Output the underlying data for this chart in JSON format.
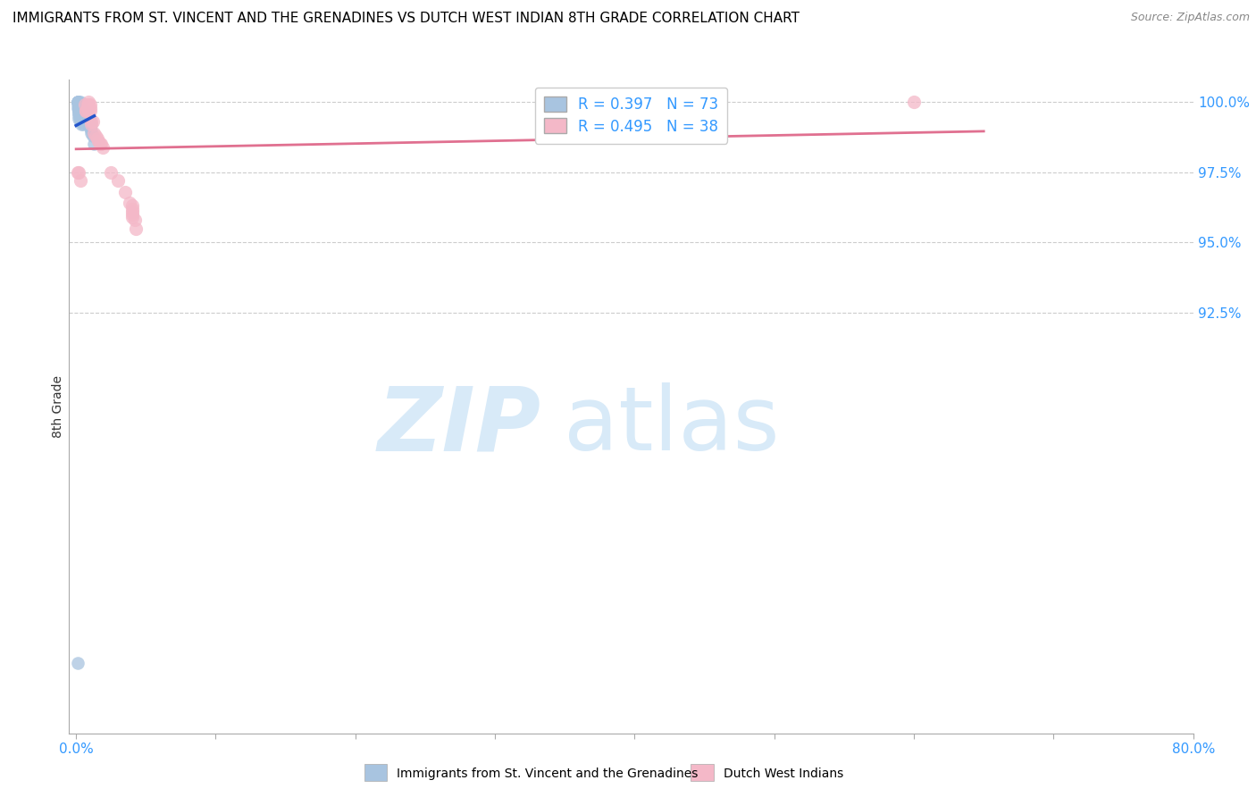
{
  "title": "IMMIGRANTS FROM ST. VINCENT AND THE GRENADINES VS DUTCH WEST INDIAN 8TH GRADE CORRELATION CHART",
  "source": "Source: ZipAtlas.com",
  "ylabel": "8th Grade",
  "ytick_labels": [
    "100.0%",
    "97.5%",
    "95.0%",
    "92.5%"
  ],
  "ytick_vals": [
    1.0,
    0.975,
    0.95,
    0.925
  ],
  "xlim": [
    -0.005,
    0.8
  ],
  "ylim": [
    0.775,
    1.008
  ],
  "blue_R": 0.397,
  "blue_N": 73,
  "pink_R": 0.495,
  "pink_N": 38,
  "blue_color": "#a8c4e0",
  "pink_color": "#f4b8c8",
  "blue_line_color": "#2255cc",
  "pink_line_color": "#e07090",
  "legend_label_blue": "Immigrants from St. Vincent and the Grenadines",
  "legend_label_pink": "Dutch West Indians",
  "blue_x": [
    0.001,
    0.001,
    0.001,
    0.001,
    0.001,
    0.001,
    0.002,
    0.002,
    0.002,
    0.002,
    0.002,
    0.002,
    0.002,
    0.002,
    0.002,
    0.002,
    0.002,
    0.002,
    0.002,
    0.002,
    0.003,
    0.003,
    0.003,
    0.003,
    0.003,
    0.003,
    0.003,
    0.003,
    0.003,
    0.003,
    0.003,
    0.003,
    0.003,
    0.004,
    0.004,
    0.004,
    0.004,
    0.004,
    0.004,
    0.004,
    0.004,
    0.004,
    0.005,
    0.005,
    0.005,
    0.005,
    0.005,
    0.005,
    0.005,
    0.006,
    0.006,
    0.006,
    0.006,
    0.006,
    0.007,
    0.007,
    0.007,
    0.007,
    0.008,
    0.008,
    0.008,
    0.008,
    0.009,
    0.009,
    0.009,
    0.01,
    0.01,
    0.01,
    0.011,
    0.011,
    0.012,
    0.013,
    0.001
  ],
  "blue_y": [
    1.0,
    1.0,
    1.0,
    1.0,
    0.999,
    0.998,
    1.0,
    1.0,
    0.999,
    0.999,
    0.999,
    0.998,
    0.998,
    0.998,
    0.997,
    0.997,
    0.996,
    0.996,
    0.995,
    0.994,
    1.0,
    0.999,
    0.999,
    0.998,
    0.998,
    0.997,
    0.997,
    0.996,
    0.996,
    0.995,
    0.995,
    0.994,
    0.993,
    0.999,
    0.998,
    0.998,
    0.997,
    0.996,
    0.995,
    0.994,
    0.993,
    0.992,
    0.998,
    0.997,
    0.996,
    0.995,
    0.994,
    0.993,
    0.992,
    0.997,
    0.996,
    0.995,
    0.994,
    0.993,
    0.996,
    0.995,
    0.994,
    0.993,
    0.995,
    0.994,
    0.993,
    0.992,
    0.994,
    0.993,
    0.992,
    0.993,
    0.992,
    0.991,
    0.99,
    0.989,
    0.988,
    0.985,
    0.8
  ],
  "pink_x": [
    0.001,
    0.002,
    0.003,
    0.006,
    0.007,
    0.007,
    0.008,
    0.008,
    0.008,
    0.009,
    0.009,
    0.009,
    0.009,
    0.01,
    0.01,
    0.01,
    0.011,
    0.011,
    0.012,
    0.013,
    0.014,
    0.015,
    0.016,
    0.017,
    0.018,
    0.019,
    0.025,
    0.03,
    0.035,
    0.038,
    0.04,
    0.04,
    0.04,
    0.04,
    0.04,
    0.042,
    0.043,
    0.6
  ],
  "pink_y": [
    0.975,
    0.975,
    0.972,
    0.999,
    0.997,
    0.997,
    0.999,
    0.998,
    0.998,
    1.0,
    0.999,
    0.998,
    0.997,
    0.999,
    0.998,
    0.997,
    0.993,
    0.992,
    0.993,
    0.989,
    0.988,
    0.987,
    0.986,
    0.985,
    0.985,
    0.984,
    0.975,
    0.972,
    0.968,
    0.964,
    0.963,
    0.962,
    0.961,
    0.96,
    0.959,
    0.958,
    0.955,
    1.0
  ],
  "blue_line_x": [
    0.0,
    0.013
  ],
  "blue_line_y": [
    0.964,
    0.999
  ],
  "pink_line_x": [
    0.0,
    0.65
  ],
  "pink_line_y": [
    0.968,
    1.003
  ]
}
